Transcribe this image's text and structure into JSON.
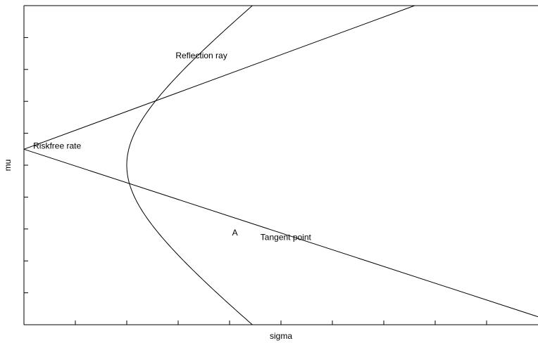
{
  "chart_data": {
    "type": "line",
    "title": "",
    "xlabel": "sigma",
    "ylabel": "mu",
    "xlim": [
      0,
      10
    ],
    "ylim": [
      -5,
      5
    ],
    "x_ticks": [
      1,
      2,
      3,
      4,
      5,
      6,
      7,
      8,
      9
    ],
    "y_ticks": [
      -4,
      -3,
      -2,
      -1,
      0,
      1,
      2,
      3,
      4
    ],
    "grid": false,
    "legend": "none",
    "risk_free_rate": 0.5,
    "frontier": {
      "min_variance_point": [
        2,
        0
      ],
      "asymptote_slope": 1.26
    },
    "series": [
      {
        "type": "ray",
        "points": [
          [
            0,
            0.5
          ],
          [
            7.6,
            5
          ]
        ]
      },
      {
        "type": "ray",
        "points": [
          [
            0,
            0.5
          ],
          [
            10,
            -4.75
          ]
        ]
      }
    ],
    "annotations": [
      {
        "text": "Reflection ray",
        "x": 2.95,
        "y": 3.35
      },
      {
        "text": "Riskfree rate",
        "x": 0.18,
        "y": 0.52
      },
      {
        "text": "A",
        "x": 4.05,
        "y": -2.2
      },
      {
        "text": "Tangent point",
        "x": 4.6,
        "y": -2.35
      }
    ]
  }
}
